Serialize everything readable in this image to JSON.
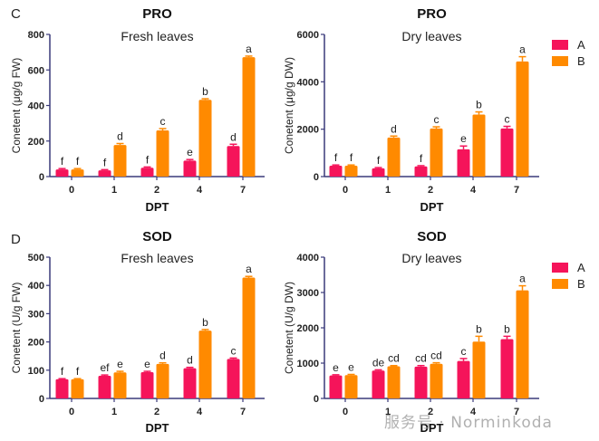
{
  "chart_data": [
    {
      "type": "bar",
      "panel_letter": "C",
      "title": "PRO",
      "subtitle": "Fresh leaves",
      "xlabel": "DPT",
      "ylabel": "Conetent (μg/g FW)",
      "categories": [
        "0",
        "1",
        "2",
        "4",
        "7"
      ],
      "ylim": [
        0,
        800
      ],
      "yticks": [
        "0",
        "200",
        "400",
        "600",
        "800"
      ],
      "ytick_values": [
        0,
        200,
        400,
        600,
        800
      ],
      "series": [
        {
          "name": "A",
          "values": [
            40,
            35,
            50,
            90,
            172
          ],
          "errors": [
            5,
            4,
            4,
            6,
            10
          ],
          "letters": [
            "f",
            "f",
            "f",
            "e",
            "d"
          ]
        },
        {
          "name": "B",
          "values": [
            40,
            178,
            260,
            432,
            672
          ],
          "errors": [
            5,
            8,
            10,
            6,
            6
          ],
          "letters": [
            "f",
            "d",
            "c",
            "b",
            "a"
          ]
        }
      ],
      "legend": null
    },
    {
      "type": "bar",
      "panel_letter": "",
      "title": "PRO",
      "subtitle": "Dry leaves",
      "xlabel": "DPT",
      "ylabel": "Conetent (μg/g DW)",
      "categories": [
        "0",
        "1",
        "2",
        "4",
        "7"
      ],
      "ylim": [
        0,
        6000
      ],
      "yticks": [
        "0",
        "2000",
        "4000",
        "6000"
      ],
      "ytick_values": [
        0,
        2000,
        4000,
        6000
      ],
      "series": [
        {
          "name": "A",
          "values": [
            460,
            350,
            430,
            1150,
            2030
          ],
          "errors": [
            30,
            30,
            30,
            140,
            90
          ],
          "letters": [
            "f",
            "f",
            "f",
            "e",
            "c"
          ]
        },
        {
          "name": "B",
          "values": [
            460,
            1650,
            2030,
            2620,
            4860
          ],
          "errors": [
            30,
            60,
            70,
            110,
            200
          ],
          "letters": [
            "f",
            "d",
            "c",
            "b",
            "a"
          ]
        }
      ],
      "legend": "right"
    },
    {
      "type": "bar",
      "panel_letter": "D",
      "title": "SOD",
      "subtitle": "Fresh leaves",
      "xlabel": "DPT",
      "ylabel": "Conetent (U/g FW)",
      "categories": [
        "0",
        "1",
        "2",
        "4",
        "7"
      ],
      "ylim": [
        0,
        500
      ],
      "yticks": [
        "0",
        "100",
        "200",
        "300",
        "400",
        "500"
      ],
      "ytick_values": [
        0,
        100,
        200,
        300,
        400,
        500
      ],
      "series": [
        {
          "name": "A",
          "values": [
            68,
            80,
            93,
            107,
            140
          ],
          "errors": [
            2,
            3,
            3,
            3,
            3
          ],
          "letters": [
            "f",
            "ef",
            "e",
            "d",
            "c"
          ]
        },
        {
          "name": "B",
          "values": [
            68,
            92,
            122,
            240,
            428
          ],
          "errors": [
            2,
            4,
            4,
            4,
            4
          ],
          "letters": [
            "f",
            "e",
            "d",
            "b",
            "a"
          ]
        }
      ],
      "legend": null
    },
    {
      "type": "bar",
      "panel_letter": "",
      "title": "SOD",
      "subtitle": "Dry leaves",
      "xlabel": "DPT",
      "ylabel": "Conetent (U/g DW)",
      "categories": [
        "0",
        "1",
        "2",
        "4",
        "7"
      ],
      "ylim": [
        0,
        4000
      ],
      "yticks": [
        "0",
        "1000",
        "2000",
        "3000",
        "4000"
      ],
      "ytick_values": [
        0,
        1000,
        2000,
        3000,
        4000
      ],
      "series": [
        {
          "name": "A",
          "values": [
            650,
            790,
            900,
            1060,
            1680
          ],
          "errors": [
            20,
            20,
            30,
            70,
            80
          ],
          "letters": [
            "e",
            "de",
            "cd",
            "c",
            "b"
          ]
        },
        {
          "name": "B",
          "values": [
            660,
            910,
            980,
            1610,
            3060
          ],
          "errors": [
            20,
            20,
            30,
            150,
            130
          ],
          "letters": [
            "e",
            "cd",
            "cd",
            "b",
            "a"
          ]
        }
      ],
      "legend": "right"
    }
  ],
  "legend": {
    "items": [
      {
        "label": "A",
        "color": "#F5145A"
      },
      {
        "label": "B",
        "color": "#FF8A00"
      }
    ]
  },
  "colors": {
    "series_a": "#F5145A",
    "series_b": "#FF8A00",
    "axis": "#3A3A7A"
  },
  "watermark": "服务号 · Norminkoda"
}
